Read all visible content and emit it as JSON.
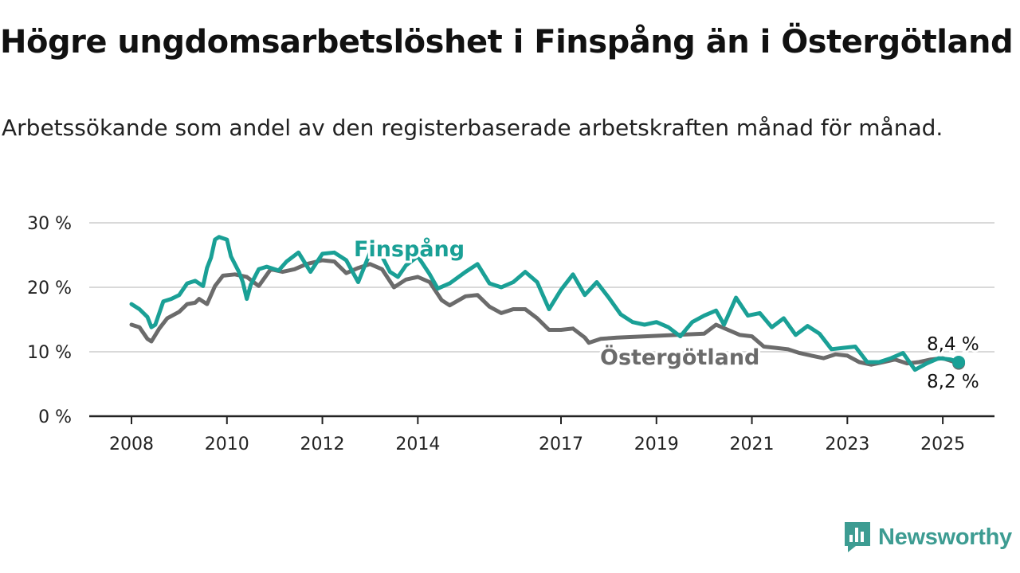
{
  "title": "Högre ungdomsarbetslöshet i Finspång än i Östergötland",
  "subtitle": "Arbetssökande som andel av den registerbaserade arbetskraften månad för månad.",
  "brand": {
    "name": "Newsworthy",
    "icon": "bar-chart-speech-bubble-icon",
    "color": "#3d9c92"
  },
  "chart_data": {
    "type": "line",
    "x_ticks": [
      "2008",
      "2010",
      "2012",
      "2014",
      "2017",
      "2019",
      "2021",
      "2023",
      "2025"
    ],
    "y_ticks": [
      "0 %",
      "10 %",
      "20 %",
      "30 %"
    ],
    "xlim": [
      "2008-01",
      "2026-01"
    ],
    "ylim": [
      0,
      30
    ],
    "grid": "horizontal",
    "series": [
      {
        "name": "Östergötland",
        "color": "#6b6b6b",
        "end_label": "8,2 %",
        "points": [
          [
            "2008-01",
            14.2
          ],
          [
            "2008-03",
            13.8
          ],
          [
            "2008-05",
            12.0
          ],
          [
            "2008-06",
            11.6
          ],
          [
            "2008-08",
            13.6
          ],
          [
            "2008-10",
            15.2
          ],
          [
            "2009-01",
            16.2
          ],
          [
            "2009-03",
            17.4
          ],
          [
            "2009-05",
            17.6
          ],
          [
            "2009-06",
            18.2
          ],
          [
            "2009-08",
            17.4
          ],
          [
            "2009-10",
            20.2
          ],
          [
            "2009-12",
            21.8
          ],
          [
            "2010-03",
            22.0
          ],
          [
            "2010-06",
            21.6
          ],
          [
            "2010-09",
            20.2
          ],
          [
            "2010-12",
            22.8
          ],
          [
            "2011-03",
            22.4
          ],
          [
            "2011-06",
            22.8
          ],
          [
            "2011-09",
            23.6
          ],
          [
            "2012-01",
            24.2
          ],
          [
            "2012-04",
            24.0
          ],
          [
            "2012-07",
            22.2
          ],
          [
            "2012-10",
            23.0
          ],
          [
            "2013-01",
            23.6
          ],
          [
            "2013-04",
            22.8
          ],
          [
            "2013-07",
            20.0
          ],
          [
            "2013-10",
            21.2
          ],
          [
            "2014-01",
            21.6
          ],
          [
            "2014-04",
            20.8
          ],
          [
            "2014-07",
            18.0
          ],
          [
            "2014-09",
            17.2
          ],
          [
            "2015-01",
            18.6
          ],
          [
            "2015-04",
            18.8
          ],
          [
            "2015-07",
            17.0
          ],
          [
            "2015-10",
            16.0
          ],
          [
            "2016-01",
            16.6
          ],
          [
            "2016-04",
            16.6
          ],
          [
            "2016-07",
            15.2
          ],
          [
            "2016-10",
            13.4
          ],
          [
            "2017-01",
            13.4
          ],
          [
            "2017-04",
            13.6
          ],
          [
            "2017-07",
            12.2
          ],
          [
            "2017-08",
            11.4
          ],
          [
            "2017-11",
            12.0
          ],
          [
            "2018-03",
            12.2
          ],
          [
            "2020-01",
            12.8
          ],
          [
            "2020-04",
            14.2
          ],
          [
            "2020-07",
            13.4
          ],
          [
            "2020-10",
            12.6
          ],
          [
            "2021-01",
            12.4
          ],
          [
            "2021-04",
            10.8
          ],
          [
            "2021-07",
            10.6
          ],
          [
            "2021-10",
            10.4
          ],
          [
            "2022-01",
            9.8
          ],
          [
            "2022-04",
            9.4
          ],
          [
            "2022-07",
            9.0
          ],
          [
            "2022-10",
            9.6
          ],
          [
            "2023-01",
            9.4
          ],
          [
            "2023-04",
            8.4
          ],
          [
            "2023-07",
            8.0
          ],
          [
            "2023-10",
            8.4
          ],
          [
            "2024-01",
            8.8
          ],
          [
            "2024-04",
            8.2
          ],
          [
            "2024-07",
            8.4
          ],
          [
            "2024-10",
            8.8
          ],
          [
            "2025-01",
            9.0
          ],
          [
            "2025-05",
            8.2
          ]
        ]
      },
      {
        "name": "Finspång",
        "color": "#1aa096",
        "end_label": "8,4 %",
        "points": [
          [
            "2008-01",
            17.4
          ],
          [
            "2008-03",
            16.6
          ],
          [
            "2008-05",
            15.4
          ],
          [
            "2008-06",
            13.8
          ],
          [
            "2008-07",
            14.2
          ],
          [
            "2008-09",
            17.8
          ],
          [
            "2008-11",
            18.2
          ],
          [
            "2009-01",
            18.8
          ],
          [
            "2009-03",
            20.6
          ],
          [
            "2009-05",
            21.0
          ],
          [
            "2009-07",
            20.2
          ],
          [
            "2009-08",
            23.0
          ],
          [
            "2009-09",
            24.6
          ],
          [
            "2009-10",
            27.4
          ],
          [
            "2009-11",
            27.8
          ],
          [
            "2010-01",
            27.4
          ],
          [
            "2010-02",
            24.8
          ],
          [
            "2010-04",
            22.4
          ],
          [
            "2010-05",
            20.8
          ],
          [
            "2010-06",
            18.2
          ],
          [
            "2010-07",
            20.4
          ],
          [
            "2010-09",
            22.8
          ],
          [
            "2010-11",
            23.2
          ],
          [
            "2011-02",
            22.6
          ],
          [
            "2011-04",
            24.0
          ],
          [
            "2011-07",
            25.4
          ],
          [
            "2011-10",
            22.4
          ],
          [
            "2012-01",
            25.2
          ],
          [
            "2012-04",
            25.4
          ],
          [
            "2012-07",
            24.2
          ],
          [
            "2012-10",
            20.8
          ],
          [
            "2013-01",
            25.4
          ],
          [
            "2013-04",
            24.8
          ],
          [
            "2013-06",
            22.4
          ],
          [
            "2013-08",
            21.6
          ],
          [
            "2013-10",
            23.4
          ],
          [
            "2014-01",
            24.8
          ],
          [
            "2014-04",
            22.0
          ],
          [
            "2014-06",
            19.8
          ],
          [
            "2014-09",
            20.6
          ],
          [
            "2015-01",
            22.4
          ],
          [
            "2015-04",
            23.6
          ],
          [
            "2015-07",
            20.6
          ],
          [
            "2015-10",
            20.0
          ],
          [
            "2016-01",
            20.8
          ],
          [
            "2016-04",
            22.4
          ],
          [
            "2016-07",
            20.8
          ],
          [
            "2016-10",
            16.6
          ],
          [
            "2017-01",
            19.6
          ],
          [
            "2017-04",
            22.0
          ],
          [
            "2017-07",
            18.8
          ],
          [
            "2017-10",
            20.8
          ],
          [
            "2018-01",
            18.4
          ],
          [
            "2018-04",
            15.8
          ],
          [
            "2018-07",
            14.6
          ],
          [
            "2018-10",
            14.2
          ],
          [
            "2019-01",
            14.6
          ],
          [
            "2019-04",
            13.8
          ],
          [
            "2019-07",
            12.4
          ],
          [
            "2019-10",
            14.6
          ],
          [
            "2020-01",
            15.6
          ],
          [
            "2020-04",
            16.4
          ],
          [
            "2020-06",
            14.2
          ],
          [
            "2020-09",
            18.4
          ],
          [
            "2020-12",
            15.6
          ],
          [
            "2021-03",
            16.0
          ],
          [
            "2021-06",
            13.8
          ],
          [
            "2021-09",
            15.2
          ],
          [
            "2021-12",
            12.6
          ],
          [
            "2022-03",
            14.0
          ],
          [
            "2022-06",
            12.8
          ],
          [
            "2022-09",
            10.4
          ],
          [
            "2022-12",
            10.6
          ],
          [
            "2023-03",
            10.8
          ],
          [
            "2023-06",
            8.4
          ],
          [
            "2023-09",
            8.4
          ],
          [
            "2023-12",
            9.0
          ],
          [
            "2024-03",
            9.8
          ],
          [
            "2024-06",
            7.2
          ],
          [
            "2024-09",
            8.2
          ],
          [
            "2024-12",
            9.0
          ],
          [
            "2025-03",
            8.8
          ],
          [
            "2025-05",
            8.4
          ]
        ]
      }
    ]
  }
}
